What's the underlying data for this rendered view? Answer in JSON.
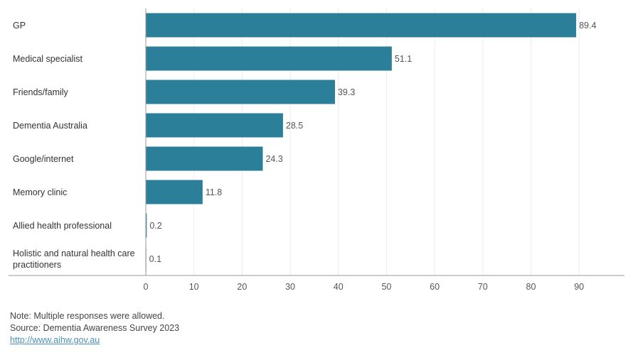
{
  "chart_data": {
    "type": "bar",
    "orientation": "horizontal",
    "categories": [
      "GP",
      "Medical specialist",
      "Friends/family",
      "Dementia Australia",
      "Google/internet",
      "Memory clinic",
      "Allied health professional",
      "Holistic and natural health care practitioners"
    ],
    "category_lines": [
      [
        "GP"
      ],
      [
        "Medical specialist"
      ],
      [
        "Friends/family"
      ],
      [
        "Dementia Australia"
      ],
      [
        "Google/internet"
      ],
      [
        "Memory clinic"
      ],
      [
        "Allied health professional"
      ],
      [
        "Holistic and natural health care",
        "practitioners"
      ]
    ],
    "values": [
      89.4,
      51.1,
      39.3,
      28.5,
      24.3,
      11.8,
      0.2,
      0.1
    ],
    "value_labels": [
      "89.4",
      "51.1",
      "39.3",
      "28.5",
      "24.3",
      "11.8",
      "0.2",
      "0.1"
    ],
    "xticks": [
      0,
      10,
      20,
      30,
      40,
      50,
      60,
      70,
      80,
      90
    ],
    "xlim": [
      0,
      95
    ],
    "grid": true,
    "bar_color": "#2c7f99"
  },
  "notes": {
    "note": "Note: Multiple responses were allowed.",
    "source": "Source: Dementia Awareness Survey 2023",
    "link": "http://www.aihw.gov.au"
  },
  "colors": {
    "bar": "#2c7f99",
    "gridline": "#ececec",
    "axis": "#999999",
    "link": "#4a90b8"
  }
}
